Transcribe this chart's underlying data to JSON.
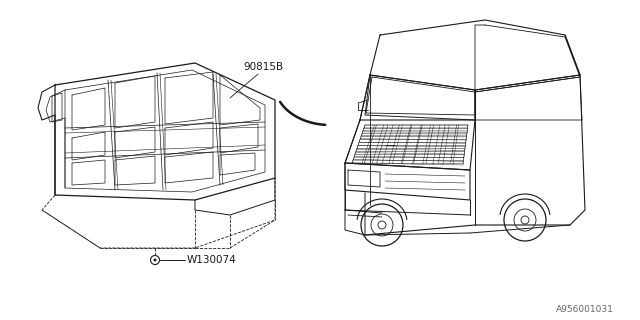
{
  "bg_color": "#ffffff",
  "line_color": "#1a1a1a",
  "label_90815B": "90815B",
  "label_W130074": "W130074",
  "label_ref": "A956001031",
  "fig_width": 6.4,
  "fig_height": 3.2,
  "dpi": 100
}
